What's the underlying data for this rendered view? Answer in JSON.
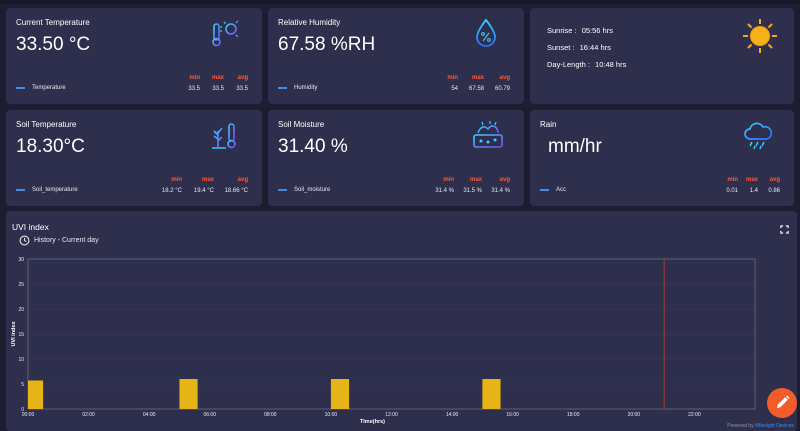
{
  "cards": {
    "temperature": {
      "title": "Current Temperature",
      "value": "33.50 °C",
      "stat_labels": {
        "min": "min",
        "max": "max",
        "avg": "avg"
      },
      "min": "33.5",
      "max": "33.5",
      "avg": "33.5",
      "legend": "Temperature",
      "icon": "thermometer-sun-icon"
    },
    "humidity": {
      "title": "Relative Humidity",
      "value": "67.58 %RH",
      "stat_labels": {
        "min": "min",
        "max": "max",
        "avg": "avg"
      },
      "min": "54",
      "max": "67.58",
      "avg": "60.79",
      "legend": "Humidity",
      "icon": "humidity-drop-icon"
    },
    "sun": {
      "sunrise_label": "Sunrise :",
      "sunrise_value": "05:56 hrs",
      "sunset_label": "Sunset :",
      "sunset_value": "16:44 hrs",
      "daylength_label": "Day-Length :",
      "daylength_value": "10:48 hrs",
      "icon": "sun-icon"
    },
    "soil_temperature": {
      "title": "Soil Temperature",
      "value": "18.30°C",
      "stat_labels": {
        "min": "min",
        "max": "max",
        "avg": "avg"
      },
      "min": "18.2 °C",
      "max": "19.4 °C",
      "avg": "18.66 °C",
      "legend": "Soil_temperature",
      "icon": "soil-thermometer-icon"
    },
    "soil_moisture": {
      "title": "Soil Moisture",
      "value": "31.40 %",
      "stat_labels": {
        "min": "min",
        "max": "max",
        "avg": "avg"
      },
      "min": "31.4 %",
      "max": "31.5 %",
      "avg": "31.4 %",
      "legend": "Soil_moisture",
      "icon": "soil-moisture-icon"
    },
    "rain": {
      "title": "Rain",
      "value": "mm/hr",
      "stat_labels": {
        "min": "min",
        "max": "max",
        "avg": "avg"
      },
      "min": "0.01",
      "max": "1.4",
      "avg": "0.86",
      "legend": "Acc",
      "icon": "rain-cloud-icon"
    }
  },
  "uvi": {
    "title": "UVI index",
    "subtitle": "History - Current day",
    "fullscreen_icon": "fullscreen-icon",
    "history_icon": "clock-icon"
  },
  "chart_data": {
    "type": "bar",
    "xlabel": "Time(hrs)",
    "ylabel": "UVI index",
    "ylim": [
      0,
      30
    ],
    "yticks": [
      0,
      5,
      10,
      15,
      20,
      25,
      30
    ],
    "x_tick_labels": [
      "00:00",
      "02:00",
      "04:00",
      "06:00",
      "08:00",
      "10:00",
      "12:00",
      "14:00",
      "16:00",
      "18:00",
      "20:00",
      "22:00"
    ],
    "xlim_hours": [
      0,
      24
    ],
    "bars": [
      {
        "start_hour": 0.0,
        "end_hour": 0.5,
        "value": 5.7
      },
      {
        "start_hour": 5.0,
        "end_hour": 5.6,
        "value": 6
      },
      {
        "start_hour": 10.0,
        "end_hour": 10.6,
        "value": 6
      },
      {
        "start_hour": 15.0,
        "end_hour": 15.6,
        "value": 6
      }
    ],
    "current_time_hour": 21.0,
    "bar_color": "#e6b416",
    "marker_color": "#c0392b",
    "grid": true
  },
  "colors": {
    "background": "#1c1d30",
    "card": "#2e2f4d",
    "stat_header": "#ff5a3c",
    "legend_line": "#3a8ef0",
    "fab": "#f25c2a"
  },
  "fab": {
    "icon": "edit-pencil-icon"
  },
  "footer": {
    "powered_prefix": "Powered by",
    "powered_brand": "Milesight Devices"
  }
}
